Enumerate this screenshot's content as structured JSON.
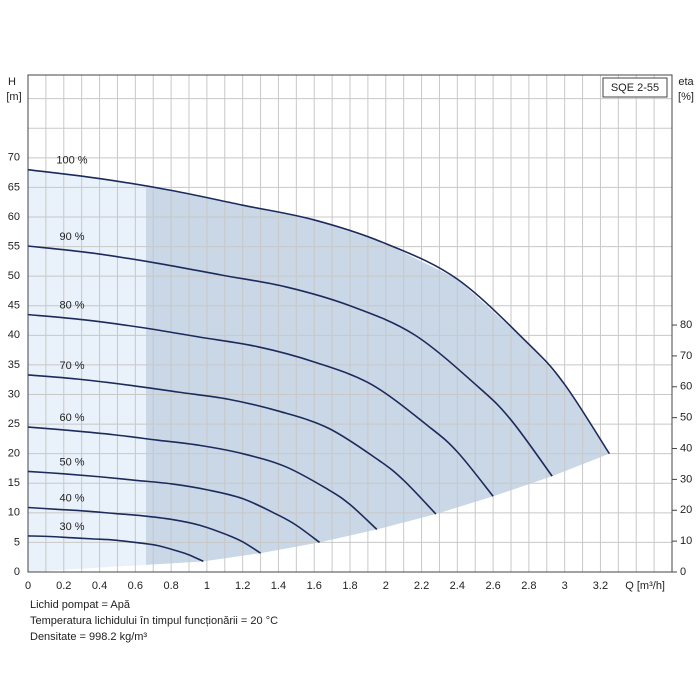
{
  "chart_data": {
    "type": "line",
    "badge": "SQE 2-55",
    "y_label": "H",
    "y_unit": "[m]",
    "y2_label": "eta",
    "y2_unit": "[%]",
    "x_label": "Q [m³/h]",
    "xlim": [
      0,
      3.6
    ],
    "xticks": [
      0,
      0.2,
      0.4,
      0.6,
      0.8,
      1.0,
      1.2,
      1.4,
      1.6,
      1.8,
      2.0,
      2.2,
      2.4,
      2.6,
      2.8,
      3.0,
      3.2
    ],
    "ylim": [
      0,
      84
    ],
    "yticks": [
      0,
      5,
      10,
      15,
      20,
      25,
      30,
      35,
      40,
      45,
      50,
      55,
      60,
      65,
      70
    ],
    "y2lim": [
      0,
      161
    ],
    "y2ticks": [
      0,
      10,
      20,
      30,
      40,
      50,
      60,
      70,
      80
    ],
    "grid": true,
    "color": "#1c2b5c",
    "series": [
      {
        "name": "100 %",
        "x": [
          0,
          0.4,
          0.8,
          1.2,
          1.6,
          2.0,
          2.4,
          2.8,
          3.0,
          3.25
        ],
        "values": [
          68,
          66.5,
          64.5,
          62,
          59.5,
          55.5,
          49.5,
          38.5,
          31.7,
          20
        ]
      },
      {
        "name": "90 %",
        "x": [
          0,
          0.36,
          0.72,
          1.08,
          1.44,
          1.8,
          2.16,
          2.52,
          2.7,
          2.93
        ],
        "values": [
          55.1,
          53.9,
          52.2,
          50.2,
          48.2,
          45.0,
          40.1,
          31.2,
          25.7,
          16.2
        ]
      },
      {
        "name": "80 %",
        "x": [
          0,
          0.32,
          0.64,
          0.96,
          1.28,
          1.6,
          1.92,
          2.24,
          2.4,
          2.6
        ],
        "values": [
          43.5,
          42.6,
          41.3,
          39.7,
          38.1,
          35.5,
          31.7,
          24.6,
          20.3,
          12.8
        ]
      },
      {
        "name": "70 %",
        "x": [
          0,
          0.28,
          0.56,
          0.84,
          1.12,
          1.4,
          1.68,
          1.96,
          2.1,
          2.28
        ],
        "values": [
          33.3,
          32.6,
          31.6,
          30.4,
          29.2,
          27.2,
          24.3,
          18.9,
          15.5,
          9.8
        ]
      },
      {
        "name": "60 %",
        "x": [
          0,
          0.24,
          0.48,
          0.72,
          0.96,
          1.2,
          1.44,
          1.68,
          1.8,
          1.95
        ],
        "values": [
          24.5,
          23.9,
          23.2,
          22.3,
          21.4,
          20.0,
          17.8,
          13.9,
          11.4,
          7.2
        ]
      },
      {
        "name": "50 %",
        "x": [
          0,
          0.2,
          0.4,
          0.6,
          0.8,
          1.0,
          1.2,
          1.4,
          1.5,
          1.63
        ],
        "values": [
          17,
          16.6,
          16.1,
          15.5,
          14.9,
          13.9,
          12.4,
          9.6,
          7.9,
          5
        ]
      },
      {
        "name": "40 %",
        "x": [
          0,
          0.16,
          0.32,
          0.48,
          0.64,
          0.8,
          0.96,
          1.12,
          1.2,
          1.3
        ],
        "values": [
          10.9,
          10.6,
          10.3,
          9.9,
          9.5,
          8.9,
          7.9,
          6.2,
          5.1,
          3.2
        ]
      },
      {
        "name": "30 %",
        "x": [
          0,
          0.12,
          0.24,
          0.36,
          0.48,
          0.6,
          0.72,
          0.84,
          0.9,
          0.98
        ],
        "values": [
          6.1,
          6.0,
          5.8,
          5.6,
          5.4,
          5.0,
          4.5,
          3.5,
          2.9,
          1.8
        ]
      }
    ],
    "notes": [
      "Lichid pompat = Apă",
      "Temperatura lichidului în timpul funcționării = 20 °C",
      "Densitate = 998.2 kg/m³"
    ]
  }
}
